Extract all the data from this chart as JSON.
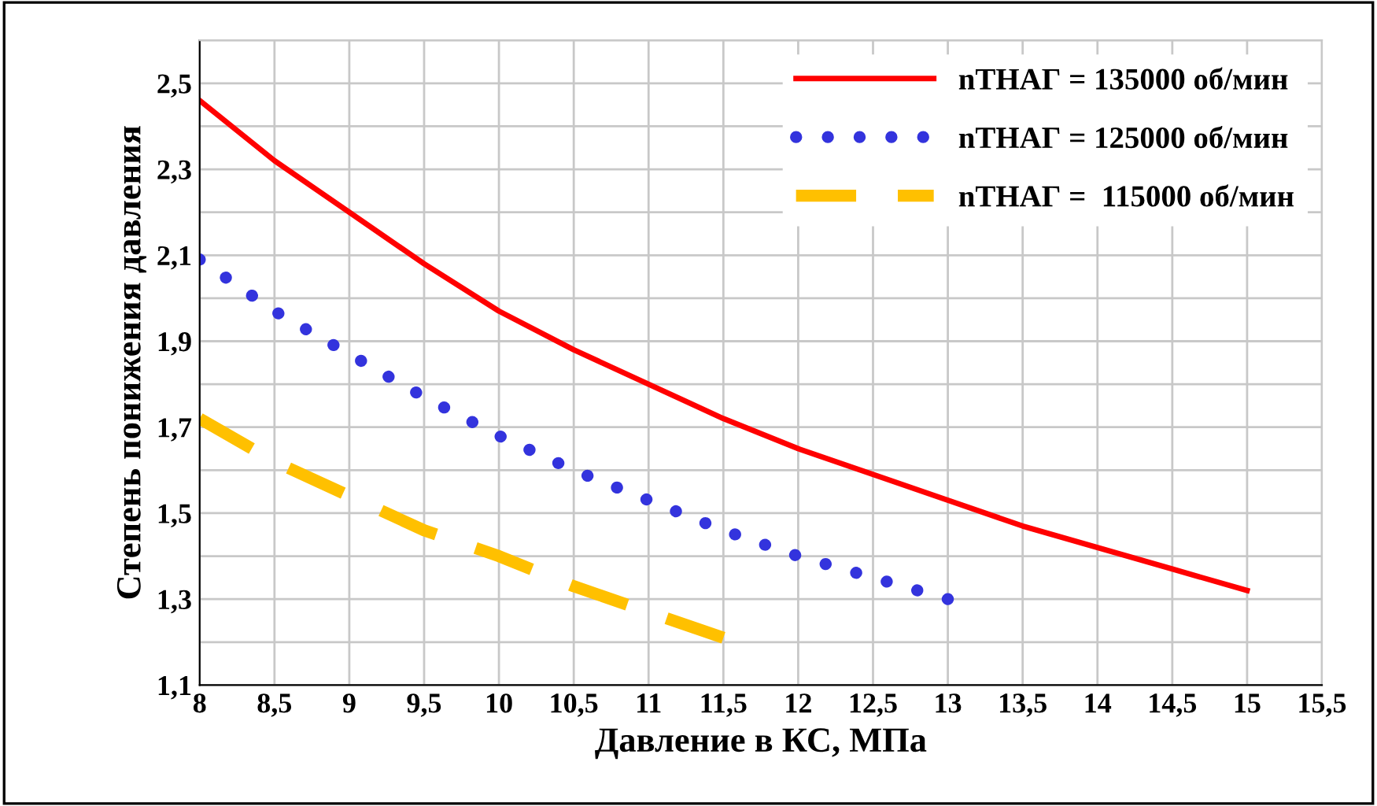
{
  "chart_data": {
    "type": "line",
    "xlabel": "Давление в КС, МПа",
    "ylabel": "Степень понижения давления",
    "xlim": [
      8,
      15.5
    ],
    "xticks": [
      8,
      {
        "value": 8.5,
        "label": "8,5"
      },
      9,
      {
        "value": 9.5,
        "label": "9,5"
      },
      10,
      {
        "value": 10.5,
        "label": "10,5"
      },
      11,
      {
        "value": 11.5,
        "label": "11,5"
      },
      12,
      {
        "value": 12.5,
        "label": "12,5"
      },
      13,
      {
        "value": 13.5,
        "label": "13,5"
      },
      14,
      {
        "value": 14.5,
        "label": "14,5"
      },
      15,
      {
        "value": 15.5,
        "label": "15,5"
      }
    ],
    "ylim": [
      1.1,
      2.6
    ],
    "yticks": [
      {
        "value": 1.1,
        "label": "1,1"
      },
      {
        "value": 1.2,
        "label": null
      },
      {
        "value": 1.3,
        "label": "1,3"
      },
      {
        "value": 1.4,
        "label": null
      },
      {
        "value": 1.5,
        "label": "1,5"
      },
      {
        "value": 1.6,
        "label": null
      },
      {
        "value": 1.7,
        "label": "1,7"
      },
      {
        "value": 1.8,
        "label": null
      },
      {
        "value": 1.9,
        "label": "1,9"
      },
      {
        "value": 2.0,
        "label": null
      },
      {
        "value": 2.1,
        "label": "2,1"
      },
      {
        "value": 2.2,
        "label": null
      },
      {
        "value": 2.3,
        "label": "2,3"
      },
      {
        "value": 2.4,
        "label": null
      },
      {
        "value": 2.5,
        "label": "2,5"
      },
      {
        "value": 2.6,
        "label": null
      }
    ],
    "grid": true,
    "legend": "top right",
    "marker": "none",
    "series": [
      {
        "name": "nТНАГ = 135000 об/мин",
        "color": "#ff0000",
        "line_style": "solid",
        "x": [
          8,
          8.5,
          9,
          9.5,
          10,
          10.5,
          11,
          11.5,
          12,
          12.5,
          13,
          13.5,
          14,
          14.5,
          15
        ],
        "values": [
          2.46,
          2.32,
          2.2,
          2.08,
          1.97,
          1.88,
          1.8,
          1.72,
          1.65,
          1.59,
          1.53,
          1.47,
          1.42,
          1.37,
          1.32
        ]
      },
      {
        "name": "nТНАГ = 125000 об/мин",
        "color": "#3333dd",
        "line_style": "dotted",
        "x": [
          8,
          8.5,
          9,
          9.5,
          10,
          10.5,
          11,
          11.5,
          12,
          12.5,
          13
        ],
        "values": [
          2.09,
          1.97,
          1.87,
          1.77,
          1.68,
          1.6,
          1.53,
          1.46,
          1.4,
          1.35,
          1.3
        ]
      },
      {
        "name": "nТНАГ =  115000 об/мин",
        "color": "#ffc000",
        "line_style": "dashed",
        "x": [
          8,
          8.5,
          9,
          9.5,
          10,
          10.5,
          11,
          11.5
        ],
        "values": [
          1.72,
          1.62,
          1.54,
          1.46,
          1.4,
          1.33,
          1.27,
          1.21
        ]
      }
    ]
  }
}
